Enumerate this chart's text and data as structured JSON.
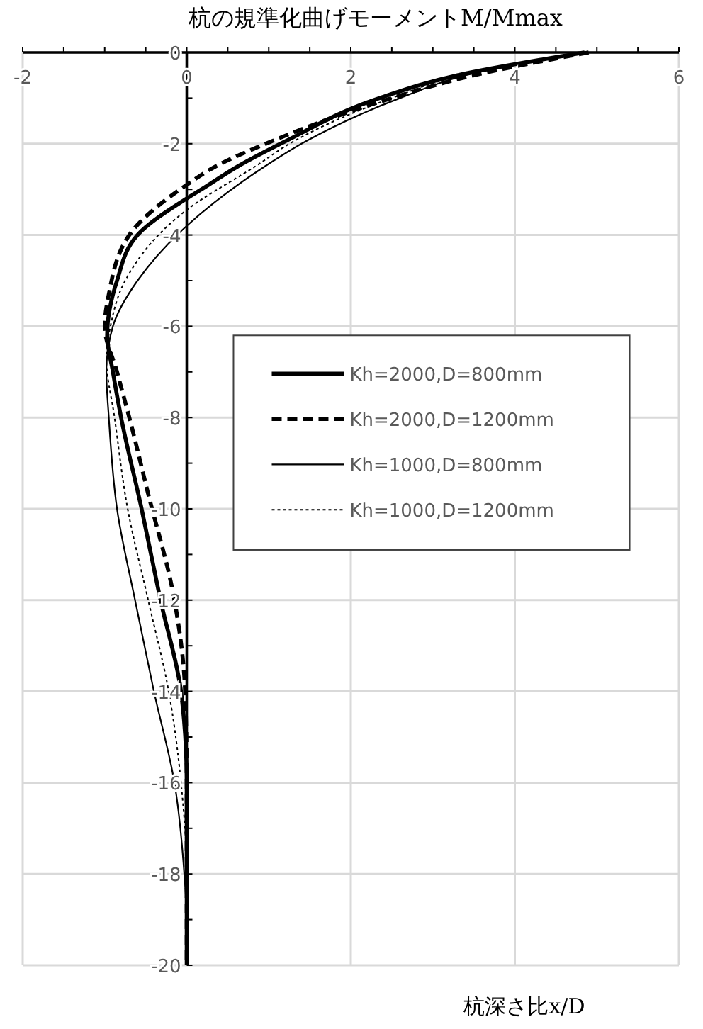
{
  "chart_data": {
    "type": "line",
    "title": "杭の規準化曲げモーメントM/Mmax",
    "annotations": [
      "杭深さ比x/D"
    ],
    "xlim": [
      -2,
      6
    ],
    "xticks": [
      -2,
      {
        "value": -1.5,
        "label": null
      },
      {
        "value": -1,
        "label": null
      },
      {
        "value": -0.5,
        "label": null
      },
      0,
      {
        "value": 0.5,
        "label": null
      },
      {
        "value": 1,
        "label": null
      },
      {
        "value": 1.5,
        "label": null
      },
      2,
      {
        "value": 2.5,
        "label": null
      },
      {
        "value": 3,
        "label": null
      },
      {
        "value": 3.5,
        "label": null
      },
      4,
      {
        "value": 4.5,
        "label": null
      },
      {
        "value": 5,
        "label": null
      },
      {
        "value": 5.5,
        "label": null
      },
      6
    ],
    "ylim": [
      -20,
      0
    ],
    "yticks": [
      -20,
      {
        "value": -19,
        "label": null
      },
      -18,
      {
        "value": -17,
        "label": null
      },
      -16,
      {
        "value": -15,
        "label": null
      },
      -14,
      {
        "value": -13,
        "label": null
      },
      -12,
      {
        "value": -11,
        "label": null
      },
      -10,
      {
        "value": -9,
        "label": null
      },
      -8,
      {
        "value": -7,
        "label": null
      },
      -6,
      {
        "value": -5,
        "label": null
      },
      -4,
      {
        "value": -3,
        "label": null
      },
      -2,
      {
        "value": -1,
        "label": null
      },
      0
    ],
    "grid": true,
    "legend": "right",
    "series": [
      {
        "name": "Kh=2000,D=800mm",
        "color": "#000000",
        "line_style": "solid",
        "x": [
          4.85,
          3.3,
          2.35,
          1.2,
          0.62,
          0.18,
          0,
          -0.6,
          -0.85,
          -0.97,
          -0.9,
          -0.8,
          -0.55,
          -0.32,
          -0.07,
          0,
          0
        ],
        "values": [
          0,
          -0.5,
          -1,
          -1.95,
          -2.5,
          -3,
          -3.2,
          -4,
          -5,
          -6.2,
          -7,
          -8,
          -10,
          -12,
          -14,
          -16,
          -20
        ]
      },
      {
        "name": "Kh=2000,D=1200mm",
        "color": "#000000",
        "line_style": "dashed",
        "x": [
          4.9,
          3.5,
          2.5,
          1.03,
          0.35,
          0,
          -0.7,
          -0.95,
          -1,
          -0.85,
          -0.7,
          -0.48,
          -0.15,
          -0.02,
          0,
          0
        ],
        "values": [
          0,
          -0.5,
          -1,
          -1.95,
          -2.5,
          -2.9,
          -4,
          -5.3,
          -6,
          -7,
          -8,
          -9.6,
          -12,
          -14,
          -16,
          -20
        ]
      },
      {
        "name": "Kh=1000,D=800mm",
        "color": "#000000",
        "line_style": "solid",
        "x": [
          4.8,
          3.4,
          2.6,
          1.45,
          0.95,
          0,
          -0.6,
          -0.9,
          -0.98,
          -0.95,
          -0.85,
          -0.63,
          -0.4,
          -0.15,
          -0.03,
          0,
          0
        ],
        "values": [
          0,
          -0.5,
          -1,
          -1.95,
          -2.5,
          -3.8,
          -5,
          -6,
          -7,
          -8,
          -10,
          -12,
          -14,
          -16,
          -18,
          -19,
          -20
        ]
      },
      {
        "name": "Kh=1000,D=1200mm",
        "color": "#000000",
        "line_style": "dotted",
        "x": [
          4.85,
          3.35,
          2.5,
          1.3,
          0.85,
          0,
          -0.75,
          -0.93,
          -0.98,
          -0.88,
          -0.72,
          -0.47,
          -0.22,
          -0.07,
          0,
          0
        ],
        "values": [
          0,
          -0.5,
          -1,
          -1.95,
          -2.48,
          -3.45,
          -5,
          -6,
          -6.7,
          -8,
          -10,
          -12,
          -14,
          -16,
          -18,
          -20
        ]
      }
    ]
  }
}
